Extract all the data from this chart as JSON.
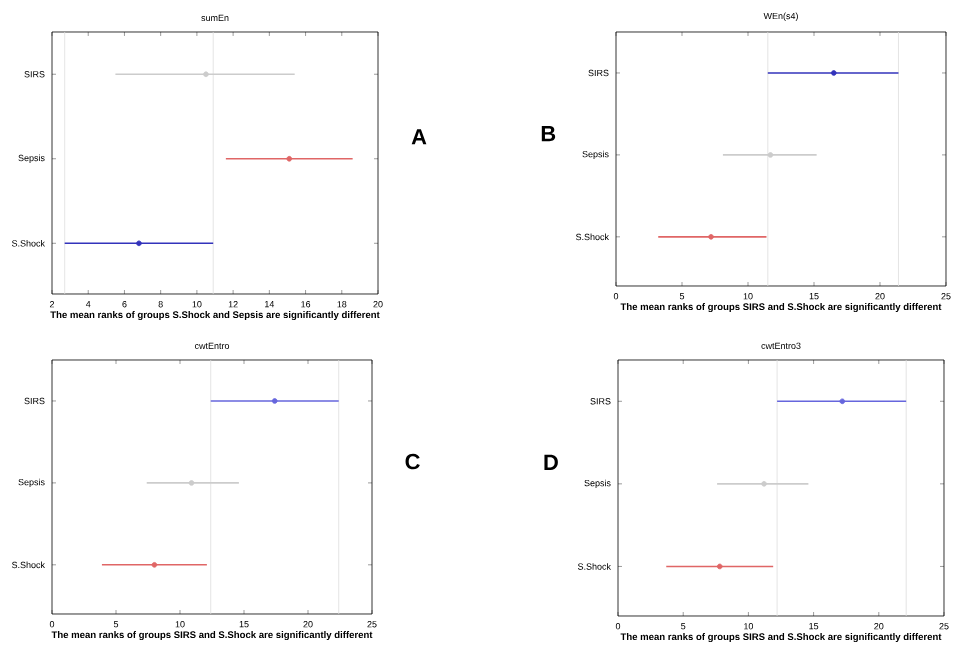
{
  "chart_data": [
    {
      "type": "scatter",
      "orientation": "horizontal",
      "title": "sumEn",
      "xlabel": "The mean ranks of groups S.Shock and Sepsis are significantly different",
      "categories": [
        "SIRS",
        "Sepsis",
        "S.Shock"
      ],
      "values": [
        10.5,
        15.1,
        6.8
      ],
      "errors": [
        [
          5.5,
          15.4
        ],
        [
          11.6,
          18.6
        ],
        [
          2.7,
          10.9
        ]
      ],
      "colors": [
        "#cccccc",
        "#e06666",
        "#3333bb"
      ],
      "marker": "circle",
      "xlim": [
        2,
        20
      ],
      "xticks": [
        2,
        4,
        6,
        8,
        10,
        12,
        14,
        16,
        18,
        20
      ],
      "ref_lines": [
        {
          "axis": "x",
          "value": 2.7,
          "color": "#dddddd"
        },
        {
          "axis": "x",
          "value": 10.9,
          "color": "#dddddd"
        }
      ],
      "annotations": [
        "A"
      ]
    },
    {
      "type": "scatter",
      "orientation": "horizontal",
      "title": "WEn(s4)",
      "xlabel": "The mean ranks of groups SIRS and S.Shock are significantly different",
      "categories": [
        "SIRS",
        "Sepsis",
        "S.Shock"
      ],
      "values": [
        16.5,
        11.7,
        7.2
      ],
      "errors": [
        [
          11.5,
          21.4
        ],
        [
          8.1,
          15.2
        ],
        [
          3.2,
          11.4
        ]
      ],
      "colors": [
        "#3333bb",
        "#cccccc",
        "#e06666"
      ],
      "marker": "circle",
      "xlim": [
        0,
        25
      ],
      "xticks": [
        0,
        5,
        10,
        15,
        20,
        25
      ],
      "ref_lines": [
        {
          "axis": "x",
          "value": 11.5,
          "color": "#dddddd"
        },
        {
          "axis": "x",
          "value": 21.4,
          "color": "#dddddd"
        }
      ],
      "annotations": [
        "B"
      ]
    },
    {
      "type": "scatter",
      "orientation": "horizontal",
      "title": "cwtEntro",
      "xlabel": "The mean ranks of groups SIRS and S.Shock are significantly different",
      "categories": [
        "SIRS",
        "Sepsis",
        "S.Shock"
      ],
      "values": [
        17.4,
        10.9,
        8.0
      ],
      "errors": [
        [
          12.4,
          22.4
        ],
        [
          7.4,
          14.6
        ],
        [
          3.9,
          12.1
        ]
      ],
      "colors": [
        "#6666dd",
        "#cccccc",
        "#e06666"
      ],
      "marker": "circle",
      "xlim": [
        0,
        25
      ],
      "xticks": [
        0,
        5,
        10,
        15,
        20,
        25
      ],
      "ref_lines": [
        {
          "axis": "x",
          "value": 12.4,
          "color": "#dddddd"
        },
        {
          "axis": "x",
          "value": 22.4,
          "color": "#dddddd"
        }
      ],
      "annotations": [
        "C"
      ]
    },
    {
      "type": "scatter",
      "orientation": "horizontal",
      "title": "cwtEntro3",
      "xlabel": "The mean ranks of groups SIRS and S.Shock are significantly different",
      "categories": [
        "SIRS",
        "Sepsis",
        "S.Shock"
      ],
      "values": [
        17.2,
        11.2,
        7.8
      ],
      "errors": [
        [
          12.2,
          22.1
        ],
        [
          7.6,
          14.6
        ],
        [
          3.7,
          11.9
        ]
      ],
      "colors": [
        "#6666dd",
        "#cccccc",
        "#e06666"
      ],
      "marker": "circle",
      "xlim": [
        0,
        25
      ],
      "xticks": [
        0,
        5,
        10,
        15,
        20,
        25
      ],
      "ref_lines": [
        {
          "axis": "x",
          "value": 12.2,
          "color": "#dddddd"
        },
        {
          "axis": "x",
          "value": 22.1,
          "color": "#dddddd"
        }
      ],
      "annotations": [
        "D"
      ]
    }
  ]
}
